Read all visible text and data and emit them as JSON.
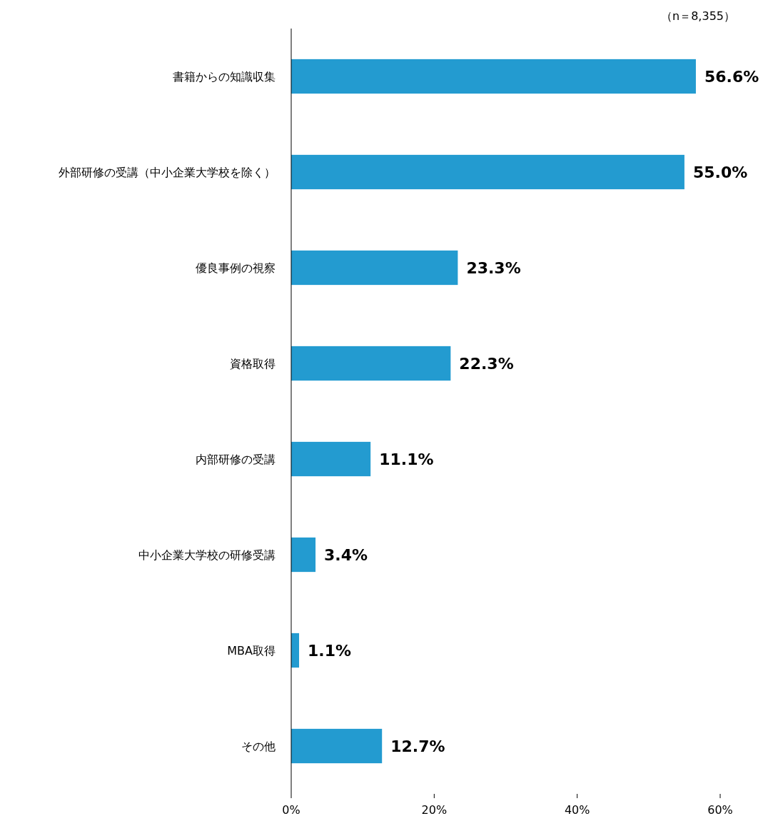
{
  "chart_data": {
    "type": "bar",
    "orientation": "horizontal",
    "categories": [
      "書籍からの知識収集",
      "外部研修の受講（中小企業大学校を除く）",
      "優良事例の視察",
      "資格取得",
      "内部研修の受講",
      "中小企業大学校の研修受講",
      "MBA取得",
      "その他"
    ],
    "values": [
      56.6,
      55.0,
      23.3,
      22.3,
      11.1,
      3.4,
      1.1,
      12.7
    ],
    "value_labels": [
      "56.6%",
      "55.0%",
      "23.3%",
      "22.3%",
      "11.1%",
      "3.4%",
      "1.1%",
      "12.7%"
    ],
    "color": "#239bd0",
    "xlim": [
      0,
      60
    ],
    "xticks": [
      {
        "value": 0,
        "label": "0%"
      },
      {
        "value": 20,
        "label": "20%"
      },
      {
        "value": 40,
        "label": "40%"
      },
      {
        "value": 60,
        "label": "60%"
      }
    ],
    "grid": false,
    "annotations": [
      "（n＝8,355）"
    ]
  }
}
